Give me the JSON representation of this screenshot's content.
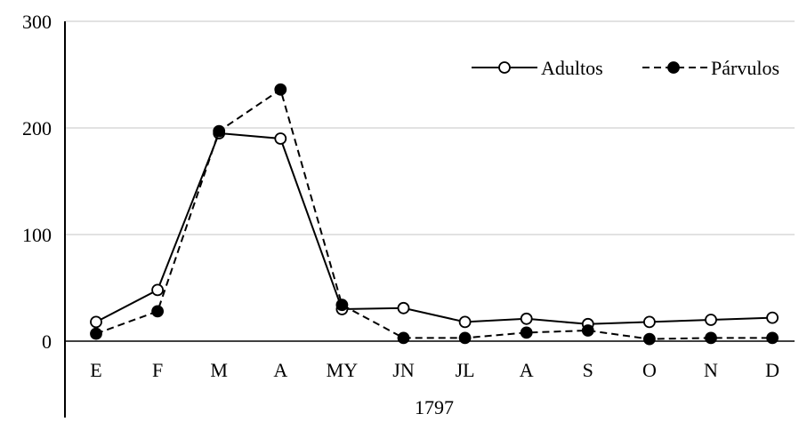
{
  "chart_data": {
    "type": "line",
    "title": "",
    "xlabel": "1797",
    "ylabel": "",
    "categories": [
      "E",
      "F",
      "M",
      "A",
      "MY",
      "JN",
      "JL",
      "A",
      "S",
      "O",
      "N",
      "D"
    ],
    "ylim": [
      0,
      300
    ],
    "yticks": [
      "0",
      "100",
      "200",
      "300"
    ],
    "grid": true,
    "legend_position": "top-right",
    "series": [
      {
        "name": "Adultos",
        "line_style": "solid",
        "marker": "open-circle",
        "color": "#000000",
        "values": [
          18,
          48,
          195,
          190,
          30,
          31,
          18,
          21,
          16,
          18,
          20,
          22
        ]
      },
      {
        "name": "Párvulos",
        "line_style": "dashed",
        "marker": "filled-circle",
        "color": "#000000",
        "values": [
          7,
          28,
          197,
          236,
          34,
          3,
          3,
          8,
          10,
          2,
          3,
          3
        ]
      }
    ]
  }
}
